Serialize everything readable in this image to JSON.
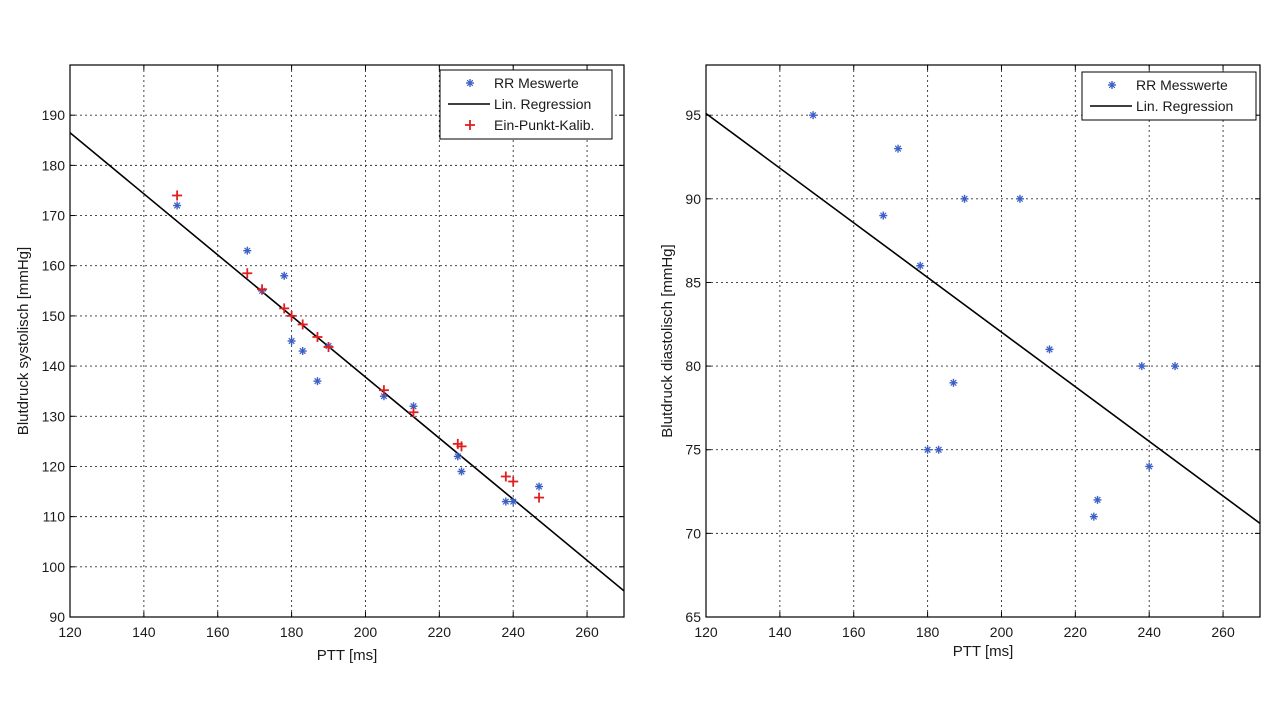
{
  "chart_data": [
    {
      "type": "scatter",
      "id": "systolic",
      "xlabel": "PTT [ms]",
      "ylabel": "Blutdruck systolisch [mmHg]",
      "xlim": [
        120,
        270
      ],
      "ylim": [
        90,
        200
      ],
      "xticks": [
        120,
        140,
        160,
        180,
        200,
        220,
        240,
        260
      ],
      "yticks": [
        90,
        100,
        110,
        120,
        130,
        140,
        150,
        160,
        170,
        180,
        190
      ],
      "grid": true,
      "legend_position": "top-right",
      "legend": [
        "RR Meswerte",
        "Lin. Regression",
        "Ein-Punkt-Kalib."
      ],
      "series": [
        {
          "name": "RR Meswerte",
          "marker": "*",
          "color": "#3b5fc6",
          "points": [
            [
              149,
              172
            ],
            [
              168,
              163
            ],
            [
              172,
              155
            ],
            [
              178,
              158
            ],
            [
              180,
              145
            ],
            [
              183,
              143
            ],
            [
              187,
              137
            ],
            [
              190,
              144
            ],
            [
              205,
              134
            ],
            [
              213,
              132
            ],
            [
              225,
              122
            ],
            [
              226,
              119
            ],
            [
              238,
              113
            ],
            [
              240,
              113
            ],
            [
              247,
              116
            ]
          ]
        },
        {
          "name": "Lin. Regression",
          "kind": "line",
          "color": "#000000",
          "points": [
            [
              120,
              186.5
            ],
            [
              270,
              95.2
            ]
          ]
        },
        {
          "name": "Ein-Punkt-Kalib.",
          "marker": "+",
          "color": "#e02020",
          "points": [
            [
              149,
              174
            ],
            [
              168,
              158.5
            ],
            [
              172,
              155.3
            ],
            [
              178,
              151.5
            ],
            [
              180,
              150
            ],
            [
              183,
              148.3
            ],
            [
              187,
              145.8
            ],
            [
              190,
              143.8
            ],
            [
              205,
              135.2
            ],
            [
              213,
              130.8
            ],
            [
              225,
              124.5
            ],
            [
              226,
              124
            ],
            [
              238,
              118
            ],
            [
              240,
              117
            ],
            [
              247,
              113.8
            ]
          ]
        }
      ]
    },
    {
      "type": "scatter",
      "id": "diastolic",
      "xlabel": "PTT [ms]",
      "ylabel": "Blutdruck diastolisch [mmHg]",
      "xlim": [
        120,
        270
      ],
      "ylim": [
        65,
        98
      ],
      "xticks": [
        120,
        140,
        160,
        180,
        200,
        220,
        240,
        260
      ],
      "yticks": [
        65,
        70,
        75,
        80,
        85,
        90,
        95
      ],
      "grid": true,
      "legend_position": "top-right",
      "legend": [
        "RR Messwerte",
        "Lin. Regression"
      ],
      "series": [
        {
          "name": "RR Messwerte",
          "marker": "*",
          "color": "#3b5fc6",
          "points": [
            [
              149,
              95
            ],
            [
              168,
              89
            ],
            [
              172,
              93
            ],
            [
              178,
              86
            ],
            [
              180,
              75
            ],
            [
              183,
              75
            ],
            [
              187,
              79
            ],
            [
              190,
              90
            ],
            [
              205,
              90
            ],
            [
              213,
              81
            ],
            [
              225,
              71
            ],
            [
              226,
              72
            ],
            [
              238,
              80
            ],
            [
              240,
              74
            ],
            [
              247,
              80
            ]
          ]
        },
        {
          "name": "Lin. Regression",
          "kind": "line",
          "color": "#000000",
          "points": [
            [
              120,
              95.1
            ],
            [
              270,
              70.6
            ]
          ]
        }
      ]
    }
  ]
}
